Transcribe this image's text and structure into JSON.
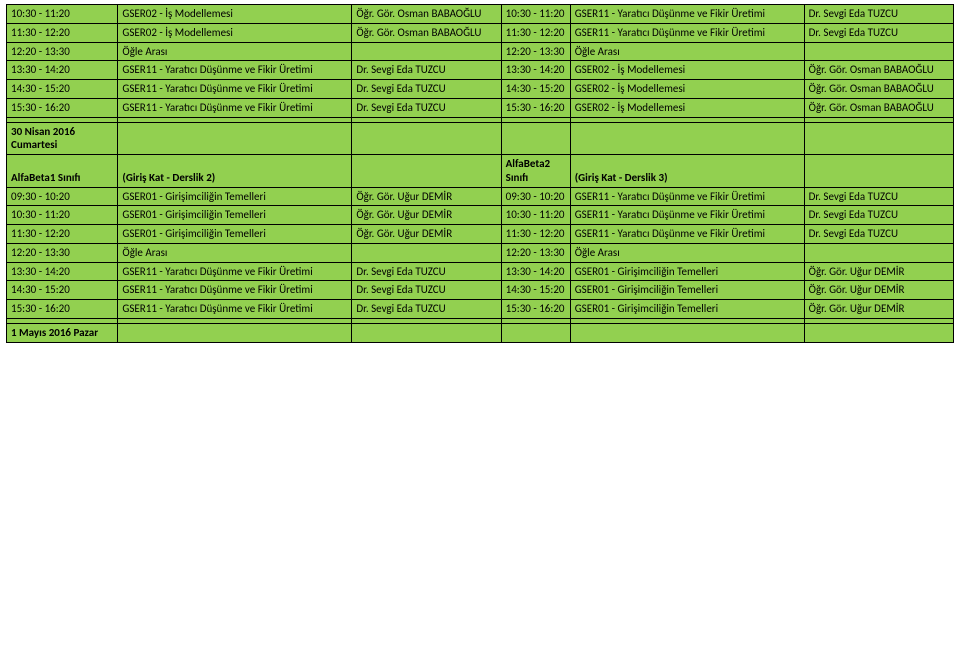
{
  "cell_bg": "#92d050",
  "border_color": "#000000",
  "font_family": "Calibri",
  "font_size_pt": 8.5,
  "bold_cells": [
    "s2_header_c2",
    "s2_header_c5",
    "s3_date_c1"
  ],
  "columns": {
    "c1": 100,
    "c2": 210,
    "c3": 134,
    "c4": 62,
    "c5": 210,
    "c6": 134
  },
  "sections": {
    "s1": {
      "rows": [
        {
          "c1": "10:30 - 11:20",
          "c2": "GSER02 - İş Modellemesi",
          "c3": "Öğr. Gör. Osman BABAOĞLU",
          "c4": "10:30 - 11:20",
          "c5": "GSER11 - Yaratıcı Düşünme ve Fikir Üretimi",
          "c6": "Dr. Sevgi Eda TUZCU"
        },
        {
          "c1": "11:30 - 12:20",
          "c2": "GSER02 - İş Modellemesi",
          "c3": "Öğr. Gör. Osman BABAOĞLU",
          "c4": "11:30 - 12:20",
          "c5": "GSER11 - Yaratıcı Düşünme ve Fikir Üretimi",
          "c6": "Dr. Sevgi Eda TUZCU"
        },
        {
          "c1": "12:20 - 13:30",
          "c2": "Öğle Arası",
          "c3": "",
          "c4": "12:20 - 13:30",
          "c5": "Öğle Arası",
          "c6": ""
        },
        {
          "c1": "13:30 - 14:20",
          "c2": "GSER11 - Yaratıcı Düşünme ve Fikir Üretimi",
          "c3": "Dr. Sevgi Eda TUZCU",
          "c4": "13:30 - 14:20",
          "c5": "GSER02 - İş Modellemesi",
          "c6": "Öğr. Gör. Osman BABAOĞLU"
        },
        {
          "c1": "14:30 - 15:20",
          "c2": "GSER11 - Yaratıcı Düşünme ve Fikir Üretimi",
          "c3": "Dr. Sevgi Eda TUZCU",
          "c4": "14:30 - 15:20",
          "c5": "GSER02 - İş Modellemesi",
          "c6": "Öğr. Gör. Osman BABAOĞLU"
        },
        {
          "c1": "15:30 - 16:20",
          "c2": "GSER11 - Yaratıcı Düşünme ve Fikir Üretimi",
          "c3": "Dr. Sevgi Eda TUZCU",
          "c4": "15:30 - 16:20",
          "c5": "GSER02 - İş Modellemesi",
          "c6": "Öğr. Gör. Osman BABAOĞLU"
        }
      ]
    },
    "s2": {
      "date": {
        "c1": "30 Nisan 2016 Cumartesi",
        "c2": "",
        "c3": "",
        "c4": "",
        "c5": "",
        "c6": ""
      },
      "header": {
        "c1": "AlfaBeta1 Sınıfı",
        "c2": "(Giriş Kat - Derslik 2)",
        "c3": "",
        "c4": "AlfaBeta2 Sınıfı",
        "c5": "(Giriş Kat - Derslik 3)",
        "c6": ""
      },
      "rows": [
        {
          "c1": "09:30 - 10:20",
          "c2": "GSER01 - Girişimciliğin Temelleri",
          "c3": "Öğr. Gör. Uğur DEMİR",
          "c4": "09:30 - 10:20",
          "c5": "GSER11 - Yaratıcı Düşünme ve Fikir Üretimi",
          "c6": "Dr. Sevgi Eda TUZCU"
        },
        {
          "c1": "10:30 - 11:20",
          "c2": "GSER01 - Girişimciliğin Temelleri",
          "c3": "Öğr. Gör. Uğur DEMİR",
          "c4": "10:30 - 11:20",
          "c5": "GSER11 - Yaratıcı Düşünme ve Fikir Üretimi",
          "c6": "Dr. Sevgi Eda TUZCU"
        },
        {
          "c1": "11:30 - 12:20",
          "c2": "GSER01 - Girişimciliğin Temelleri",
          "c3": "Öğr. Gör. Uğur DEMİR",
          "c4": "11:30 - 12:20",
          "c5": "GSER11 - Yaratıcı Düşünme ve Fikir Üretimi",
          "c6": "Dr. Sevgi Eda TUZCU"
        },
        {
          "c1": "12:20 - 13:30",
          "c2": "Öğle Arası",
          "c3": "",
          "c4": "12:20 - 13:30",
          "c5": "Öğle Arası",
          "c6": ""
        },
        {
          "c1": "13:30 - 14:20",
          "c2": "GSER11 - Yaratıcı Düşünme ve Fikir Üretimi",
          "c3": "Dr. Sevgi Eda TUZCU",
          "c4": "13:30 - 14:20",
          "c5": "GSER01 - Girişimciliğin Temelleri",
          "c6": "Öğr. Gör. Uğur DEMİR"
        },
        {
          "c1": "14:30 - 15:20",
          "c2": "GSER11 - Yaratıcı Düşünme ve Fikir Üretimi",
          "c3": "Dr. Sevgi Eda TUZCU",
          "c4": "14:30 - 15:20",
          "c5": "GSER01 - Girişimciliğin Temelleri",
          "c6": "Öğr. Gör. Uğur DEMİR"
        },
        {
          "c1": "15:30 - 16:20",
          "c2": "GSER11 - Yaratıcı Düşünme ve Fikir Üretimi",
          "c3": "Dr. Sevgi Eda TUZCU",
          "c4": "15:30 - 16:20",
          "c5": "GSER01 - Girişimciliğin Temelleri",
          "c6": "Öğr. Gör. Uğur DEMİR"
        }
      ]
    },
    "s3": {
      "date": {
        "c1": "1 Mayıs 2016 Pazar",
        "c2": "",
        "c3": "",
        "c4": "",
        "c5": "",
        "c6": ""
      }
    }
  }
}
